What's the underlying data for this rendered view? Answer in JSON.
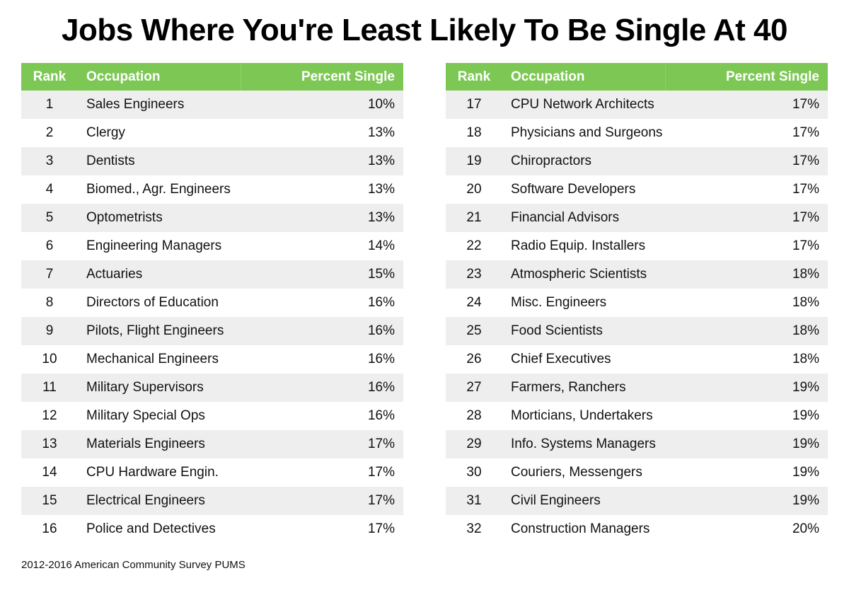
{
  "title": "Jobs Where You're Least Likely To Be Single At 40",
  "footer": "2012-2016 American Community Survey PUMS",
  "colors": {
    "header": "#7dc855",
    "stripe": "#eeeeee"
  },
  "chart_data": {
    "type": "table",
    "title": "Jobs Where You're Least Likely To Be Single At 40",
    "columns": [
      "Rank",
      "Occupation",
      "Percent Single"
    ],
    "rows": [
      [
        1,
        "Sales Engineers",
        "10%"
      ],
      [
        2,
        "Clergy",
        "13%"
      ],
      [
        3,
        "Dentists",
        "13%"
      ],
      [
        4,
        "Biomed., Agr. Engineers",
        "13%"
      ],
      [
        5,
        "Optometrists",
        "13%"
      ],
      [
        6,
        "Engineering Managers",
        "14%"
      ],
      [
        7,
        "Actuaries",
        "15%"
      ],
      [
        8,
        "Directors of Education",
        "16%"
      ],
      [
        9,
        "Pilots, Flight Engineers",
        "16%"
      ],
      [
        10,
        "Mechanical Engineers",
        "16%"
      ],
      [
        11,
        "Military Supervisors",
        "16%"
      ],
      [
        12,
        "Military Special Ops",
        "16%"
      ],
      [
        13,
        "Materials Engineers",
        "17%"
      ],
      [
        14,
        "CPU Hardware Engin.",
        "17%"
      ],
      [
        15,
        "Electrical Engineers",
        "17%"
      ],
      [
        16,
        "Police and Detectives",
        "17%"
      ],
      [
        17,
        "CPU Network Architects",
        "17%"
      ],
      [
        18,
        "Physicians and Surgeons",
        "17%"
      ],
      [
        19,
        "Chiropractors",
        "17%"
      ],
      [
        20,
        "Software Developers",
        "17%"
      ],
      [
        21,
        "Financial Advisors",
        "17%"
      ],
      [
        22,
        "Radio Equip. Installers",
        "17%"
      ],
      [
        23,
        "Atmospheric Scientists",
        "18%"
      ],
      [
        24,
        "Misc. Engineers",
        "18%"
      ],
      [
        25,
        "Food Scientists",
        "18%"
      ],
      [
        26,
        "Chief Executives",
        "18%"
      ],
      [
        27,
        "Farmers, Ranchers",
        "19%"
      ],
      [
        28,
        "Morticians, Undertakers",
        "19%"
      ],
      [
        29,
        "Info. Systems Managers",
        "19%"
      ],
      [
        30,
        "Couriers, Messengers",
        "19%"
      ],
      [
        31,
        "Civil Engineers",
        "19%"
      ],
      [
        32,
        "Construction Managers",
        "20%"
      ]
    ]
  }
}
